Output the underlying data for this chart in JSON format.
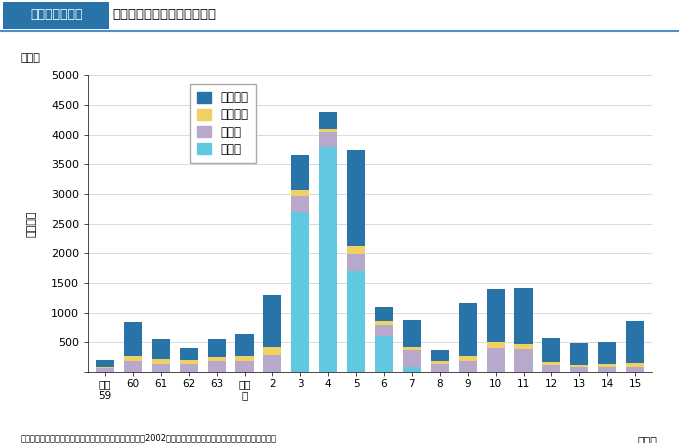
{
  "title_box_text": "図２－４－４６",
  "title_main_text": "土砂災害の発生状況の推移",
  "unit_label": "（件）",
  "xlabel": "（年）",
  "ylabel": "発生件数",
  "ylim": [
    0,
    5000
  ],
  "yticks": [
    0,
    500,
    1000,
    1500,
    2000,
    2500,
    3000,
    3500,
    4000,
    4500,
    5000
  ],
  "categories": [
    "昭和\n59",
    "60",
    "61",
    "62",
    "63",
    "平成\n元",
    "2",
    "3",
    "4",
    "5",
    "6",
    "7",
    "8",
    "9",
    "10",
    "11",
    "12",
    "13",
    "14",
    "15"
  ],
  "legend_labels": [
    "がけ崩れ",
    "地すべり",
    "土石流",
    "火砕流"
  ],
  "stack_order": [
    "火砕流",
    "土石流",
    "地すべり",
    "がけ崩れ"
  ],
  "colors_map": {
    "がけ崩れ": "#2874a8",
    "地すべり": "#f0d060",
    "土石流": "#b8a8cc",
    "火砕流": "#60c8e0"
  },
  "source_text": "（（財）砂防・地すべり技術センター「土砂災害の実態2002」及び国土交通省砂防部資料より内閣府作成。）",
  "data": {
    "がけ崩れ": [
      110,
      580,
      350,
      195,
      300,
      375,
      885,
      590,
      285,
      1630,
      245,
      450,
      185,
      885,
      890,
      940,
      415,
      370,
      385,
      695
    ],
    "地すべり": [
      25,
      75,
      75,
      65,
      75,
      75,
      130,
      95,
      60,
      130,
      55,
      45,
      50,
      85,
      95,
      90,
      45,
      35,
      40,
      70
    ],
    "土石流": [
      65,
      190,
      140,
      140,
      185,
      190,
      290,
      270,
      240,
      290,
      190,
      290,
      140,
      190,
      410,
      390,
      120,
      90,
      90,
      90
    ],
    "火砕流": [
      0,
      0,
      0,
      0,
      0,
      0,
      0,
      2700,
      3800,
      1700,
      610,
      90,
      0,
      0,
      0,
      0,
      0,
      0,
      0,
      0
    ]
  },
  "bar_width": 0.65,
  "title_box_color": "#2874a8",
  "title_border_color": "#4a90d0",
  "grid_color": "#cccccc",
  "background_color": "white"
}
